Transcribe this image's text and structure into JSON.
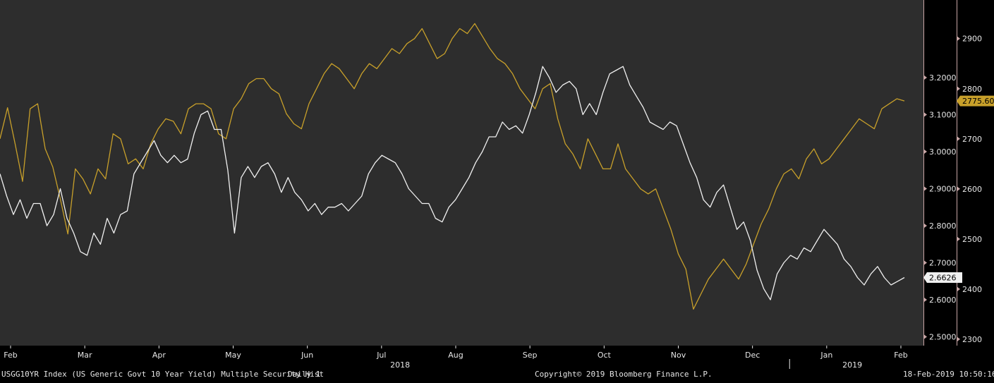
{
  "colors": {
    "plot_background": "#2d2d2d",
    "axis_background": "#000000",
    "yield_series": "#f0f0f0",
    "index_series": "#c8a02a",
    "axis_text": "#e6e6e6",
    "right_axis_line": "#c8a6a6"
  },
  "chart_data": {
    "type": "line",
    "x_axis": {
      "months": [
        "Feb",
        "Mar",
        "Apr",
        "May",
        "Jun",
        "Jul",
        "Aug",
        "Sep",
        "Oct",
        "Nov",
        "Dec",
        "Jan",
        "Feb"
      ],
      "years": [
        "2018",
        "2019"
      ]
    },
    "y_axis_yield": {
      "ticks": [
        "2.5000",
        "2.6000",
        "2.7000",
        "2.8000",
        "2.9000",
        "3.0000",
        "3.1000",
        "3.2000"
      ],
      "range": [
        2.48,
        3.4
      ]
    },
    "y_axis_index": {
      "ticks": [
        "2300",
        "2400",
        "2500",
        "2600",
        "2700",
        "2800",
        "2900"
      ],
      "range": [
        2290,
        2970
      ]
    },
    "series": [
      {
        "key": "yield",
        "last_value_label": "2.6626",
        "values": [
          2.94,
          2.88,
          2.83,
          2.87,
          2.82,
          2.86,
          2.86,
          2.8,
          2.83,
          2.9,
          2.82,
          2.78,
          2.73,
          2.72,
          2.78,
          2.75,
          2.82,
          2.78,
          2.83,
          2.84,
          2.94,
          2.97,
          3.0,
          3.03,
          2.99,
          2.97,
          2.99,
          2.97,
          2.98,
          3.05,
          3.1,
          3.11,
          3.06,
          3.06,
          2.95,
          2.78,
          2.93,
          2.96,
          2.93,
          2.96,
          2.97,
          2.94,
          2.89,
          2.93,
          2.89,
          2.87,
          2.84,
          2.86,
          2.83,
          2.85,
          2.85,
          2.86,
          2.84,
          2.86,
          2.88,
          2.94,
          2.97,
          2.99,
          2.98,
          2.97,
          2.94,
          2.9,
          2.88,
          2.86,
          2.86,
          2.82,
          2.81,
          2.85,
          2.87,
          2.9,
          2.93,
          2.97,
          3.0,
          3.04,
          3.04,
          3.08,
          3.06,
          3.07,
          3.05,
          3.1,
          3.16,
          3.23,
          3.2,
          3.16,
          3.18,
          3.19,
          3.17,
          3.1,
          3.13,
          3.1,
          3.16,
          3.21,
          3.22,
          3.23,
          3.18,
          3.15,
          3.12,
          3.08,
          3.07,
          3.06,
          3.08,
          3.07,
          3.02,
          2.97,
          2.93,
          2.87,
          2.85,
          2.89,
          2.91,
          2.85,
          2.79,
          2.81,
          2.76,
          2.68,
          2.63,
          2.6,
          2.67,
          2.7,
          2.72,
          2.71,
          2.74,
          2.73,
          2.76,
          2.79,
          2.77,
          2.75,
          2.71,
          2.69,
          2.66,
          2.64,
          2.67,
          2.69,
          2.66,
          2.64,
          2.65,
          2.66
        ]
      },
      {
        "key": "index",
        "last_value_label": "2775.60",
        "values": [
          2700,
          2762,
          2690,
          2615,
          2760,
          2770,
          2680,
          2644,
          2580,
          2510,
          2640,
          2620,
          2590,
          2640,
          2620,
          2710,
          2700,
          2650,
          2660,
          2640,
          2690,
          2720,
          2740,
          2735,
          2710,
          2760,
          2770,
          2770,
          2760,
          2710,
          2700,
          2760,
          2780,
          2810,
          2820,
          2820,
          2800,
          2790,
          2750,
          2730,
          2720,
          2770,
          2800,
          2830,
          2850,
          2840,
          2820,
          2800,
          2830,
          2850,
          2840,
          2860,
          2880,
          2870,
          2890,
          2900,
          2920,
          2890,
          2860,
          2870,
          2900,
          2920,
          2910,
          2930,
          2905,
          2880,
          2860,
          2850,
          2830,
          2800,
          2780,
          2760,
          2800,
          2810,
          2740,
          2690,
          2670,
          2640,
          2700,
          2670,
          2640,
          2640,
          2690,
          2640,
          2620,
          2600,
          2590,
          2600,
          2560,
          2520,
          2470,
          2440,
          2360,
          2390,
          2420,
          2440,
          2460,
          2440,
          2420,
          2450,
          2490,
          2530,
          2560,
          2600,
          2630,
          2640,
          2620,
          2660,
          2680,
          2650,
          2660,
          2680,
          2700,
          2720,
          2740,
          2730,
          2720,
          2760,
          2770,
          2780,
          2775.6
        ]
      }
    ]
  },
  "footer": {
    "security": "USGG10YR Index (US Generic Govt 10 Year Yield) Multiple Security Hist",
    "frequency": "Daily 1",
    "copyright": "Copyright© 2019 Bloomberg Finance L.P.",
    "timestamp": "18-Feb-2019 10:50:16"
  }
}
